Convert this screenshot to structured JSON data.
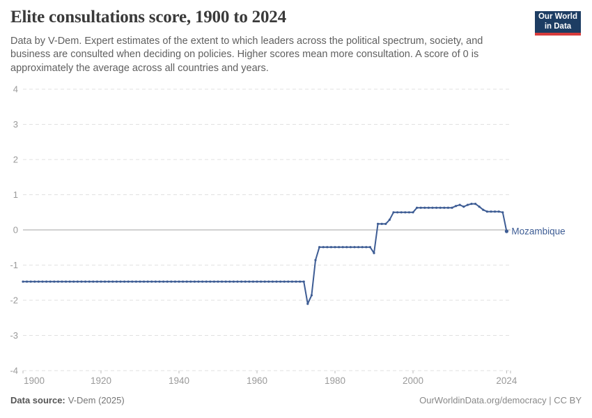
{
  "header": {
    "title": "Elite consultations score, 1900 to 2024",
    "subtitle": "Data by V-Dem. Expert estimates of the extent to which leaders across the political spectrum, society, and business are consulted when deciding on policies. Higher scores mean more consultation. A score of 0 is approximately the average across all countries and years.",
    "logo": {
      "line1": "Our World",
      "line2": "in Data",
      "bg_color": "#1d3d63",
      "stripe_color": "#d73c3c"
    }
  },
  "chart_data": {
    "type": "line",
    "title": "Elite consultations score, 1900 to 2024",
    "xlabel": "",
    "ylabel": "",
    "x_start": 1900,
    "x_end": 2024,
    "xticks": [
      1900,
      1920,
      1940,
      1960,
      1980,
      2000,
      2024
    ],
    "yticks": [
      4,
      3,
      2,
      1,
      0,
      -1,
      -2,
      -3,
      -4
    ],
    "ylim": [
      -4,
      4
    ],
    "xlim": [
      1900,
      2024
    ],
    "grid": "horizontal dashed gridlines, solid zero line, legend as inline entity label at line end",
    "colors": {
      "gridline": "#e1e1e1",
      "zero_line": "#a3a3a3",
      "tick_label": "#9a9a9a",
      "tick_mark": "#bbbbbb"
    },
    "series": [
      {
        "name": "Mozambique",
        "color": "#3d5c94",
        "values": [
          -1.47,
          -1.47,
          -1.47,
          -1.47,
          -1.47,
          -1.47,
          -1.47,
          -1.47,
          -1.47,
          -1.47,
          -1.47,
          -1.47,
          -1.47,
          -1.47,
          -1.47,
          -1.47,
          -1.47,
          -1.47,
          -1.47,
          -1.47,
          -1.47,
          -1.47,
          -1.47,
          -1.47,
          -1.47,
          -1.47,
          -1.47,
          -1.47,
          -1.47,
          -1.47,
          -1.47,
          -1.47,
          -1.47,
          -1.47,
          -1.47,
          -1.47,
          -1.47,
          -1.47,
          -1.47,
          -1.47,
          -1.47,
          -1.47,
          -1.47,
          -1.47,
          -1.47,
          -1.47,
          -1.47,
          -1.47,
          -1.47,
          -1.47,
          -1.47,
          -1.47,
          -1.47,
          -1.47,
          -1.47,
          -1.47,
          -1.47,
          -1.47,
          -1.47,
          -1.47,
          -1.47,
          -1.47,
          -1.47,
          -1.47,
          -1.47,
          -1.47,
          -1.47,
          -1.47,
          -1.47,
          -1.47,
          -1.47,
          -1.47,
          -1.47,
          -2.1,
          -1.86,
          -0.86,
          -0.49,
          -0.49,
          -0.49,
          -0.49,
          -0.49,
          -0.49,
          -0.49,
          -0.49,
          -0.49,
          -0.49,
          -0.49,
          -0.49,
          -0.49,
          -0.49,
          -0.66,
          0.17,
          0.17,
          0.17,
          0.29,
          0.5,
          0.5,
          0.5,
          0.5,
          0.5,
          0.5,
          0.63,
          0.63,
          0.63,
          0.63,
          0.63,
          0.63,
          0.63,
          0.63,
          0.63,
          0.63,
          0.68,
          0.71,
          0.66,
          0.71,
          0.74,
          0.74,
          0.66,
          0.57,
          0.52,
          0.52,
          0.52,
          0.52,
          0.5,
          -0.04
        ]
      }
    ]
  },
  "footer": {
    "source_label": "Data source:",
    "source_value": "V-Dem (2025)",
    "right": "OurWorldinData.org/democracy | CC BY"
  }
}
